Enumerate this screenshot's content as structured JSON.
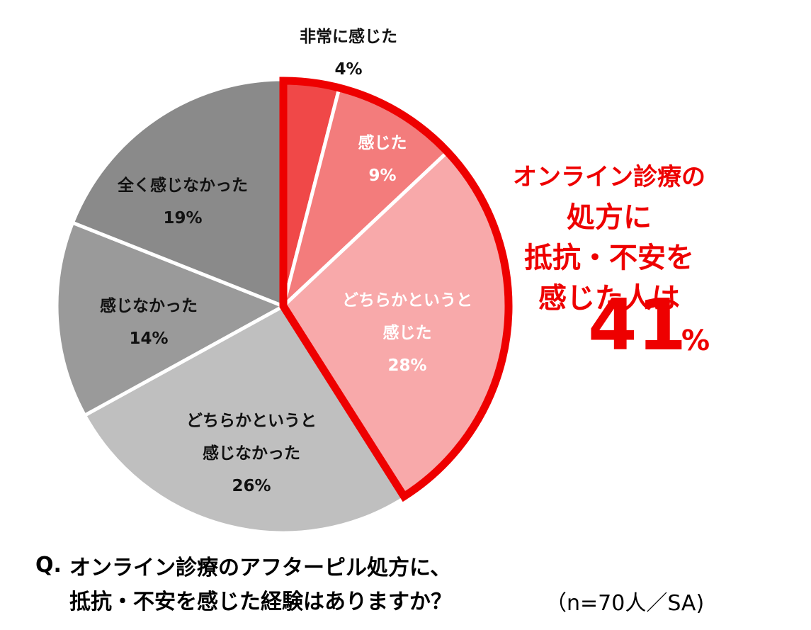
{
  "chart_data": {
    "type": "pie",
    "categories": [
      "非常に感じた",
      "感じた",
      "どちらかというと\n感じた",
      "どちらかというと\n感じなかった",
      "感じなかった",
      "全く感じなかった"
    ],
    "values": [
      4,
      9,
      28,
      26,
      14,
      19
    ],
    "value_labels": [
      "4%",
      "9%",
      "28%",
      "26%",
      "14%",
      "19%"
    ],
    "colors": [
      "#f04848",
      "#f37c7c",
      "#f8a9aa",
      "#bfbfbf",
      "#9a9a9a",
      "#8a8a8a"
    ],
    "highlight_color": "#ee0000",
    "highlight_text": "オンライン診療の処方に\n抵抗・不安を\n感じた人は",
    "highlight_value": 41,
    "highlight_unit": "%",
    "question_prefix": "Q.",
    "question": "オンライン診療のアフターピル処方に、\n抵抗・不安を感じた経験はありますか？",
    "note": "（n=70人／SA)"
  }
}
